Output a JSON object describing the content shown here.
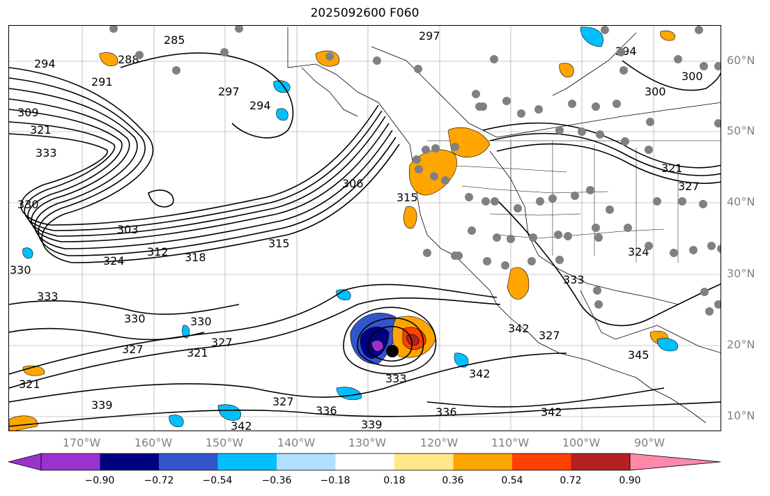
{
  "title": "2025092600 F060",
  "lat_labels": [
    {
      "text": "60°N",
      "y": 87
    },
    {
      "text": "50°N",
      "y": 188
    },
    {
      "text": "40°N",
      "y": 290
    },
    {
      "text": "30°N",
      "y": 393
    },
    {
      "text": "20°N",
      "y": 495
    },
    {
      "text": "10°N",
      "y": 597
    }
  ],
  "lon_labels": [
    "170°W",
    "160°W",
    "150°W",
    "140°W",
    "130°W",
    "120°W",
    "110°W",
    "100°W",
    "90°W"
  ],
  "contour_labels": [
    "285",
    "297",
    "291",
    "288",
    "294",
    "297",
    "294",
    "309",
    "321",
    "333",
    "330",
    "303",
    "312",
    "318",
    "324",
    "315",
    "306",
    "315",
    "300",
    "300",
    "294",
    "321",
    "327",
    "330",
    "330",
    "327",
    "333",
    "321",
    "327",
    "333",
    "336",
    "339",
    "339",
    "342",
    "342",
    "336",
    "342",
    "345",
    "342",
    "333",
    "327",
    "330",
    "324",
    "321",
    "327"
  ],
  "colorbar": {
    "colors": [
      "#9933cc",
      "#000080",
      "#3355cc",
      "#00bfff",
      "#b0e0ff",
      "#ffffff",
      "#ffe88a",
      "#ffa500",
      "#ff4000",
      "#b22222",
      "#ff88aa"
    ],
    "tick_labels": [
      "−0.90",
      "−0.72",
      "−0.54",
      "−0.36",
      "−0.18",
      "0.18",
      "0.36",
      "0.54",
      "0.72",
      "0.90"
    ]
  },
  "legend_dot_color": "#808080"
}
